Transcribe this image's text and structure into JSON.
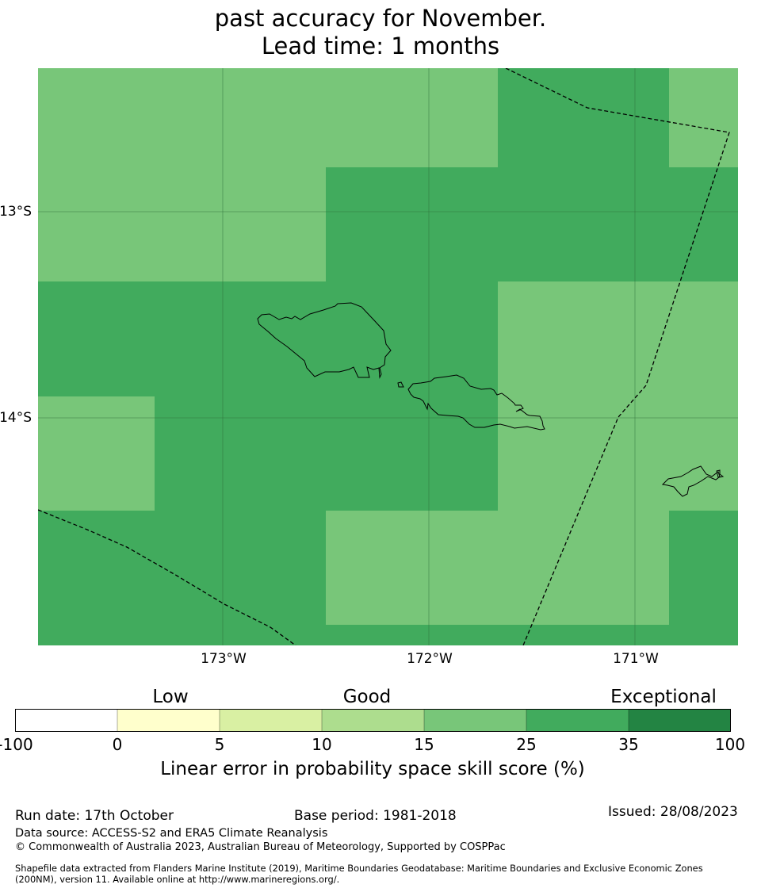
{
  "title": {
    "line1": "past accuracy for November.",
    "line2": "Lead time: 1 months"
  },
  "map": {
    "lat_labels": [
      "13°S",
      "14°S"
    ],
    "lon_labels": [
      "173°W",
      "172°W",
      "171°W"
    ],
    "colors": {
      "skill_15_25": "#78c679",
      "skill_25_35": "#41ab5d",
      "gridline": "#2f6f3a",
      "boundary": "#000000"
    },
    "features": [
      "Savai'i island outline",
      "Upolu island outline",
      "Tutuila island outline",
      "maritime boundary dashed lines"
    ]
  },
  "colorbar": {
    "categories": [
      "Low",
      "Good",
      "Exceptional"
    ],
    "ticks": [
      "-100",
      "0",
      "5",
      "10",
      "15",
      "25",
      "35",
      "100"
    ],
    "segment_colors": [
      "#ffffff",
      "#ffffcc",
      "#d9f0a3",
      "#addd8e",
      "#78c679",
      "#41ab5d",
      "#238443"
    ],
    "label": "Linear error in probability space skill score (%)"
  },
  "footer": {
    "run_date": "Run date: 17th October",
    "base_period": "Base period: 1981-2018",
    "issued": "Issued: 28/08/2023",
    "data_source": "Data source: ACCESS-S2 and ERA5 Climate Reanalysis",
    "copyright": "© Commonwealth of Australia 2023, Australian Bureau of Meteorology, Supported by COSPPac",
    "shapefile_line1": "Shapefile data extracted from Flanders Marine Institute (2019), Maritime Boundaries Geodatabase: Maritime Boundaries and Exclusive Economic Zones",
    "shapefile_line2": "(200NM), version 11. Available online at http://www.marineregions.org/."
  }
}
